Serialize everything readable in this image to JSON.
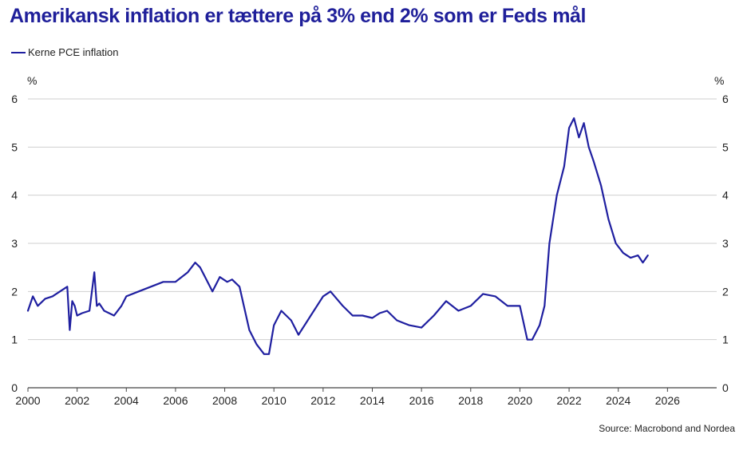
{
  "title": "Amerikansk inflation er tættere på 3% end 2% som er Feds mål",
  "legend": {
    "label": "Kerne PCE inflation"
  },
  "source": "Source: Macrobond and Nordea",
  "colors": {
    "title": "#1f1f9a",
    "series": "#1f1fa0",
    "grid": "#cfcfcf"
  },
  "chart_data": {
    "type": "line",
    "title": "Amerikansk inflation er tættere på 3% end 2% som er Feds mål",
    "ylabel_left": "%",
    "ylabel_right": "%",
    "xlim": [
      2000,
      2028
    ],
    "ylim": [
      0,
      6
    ],
    "x_ticks": [
      2000,
      2002,
      2004,
      2006,
      2008,
      2010,
      2012,
      2014,
      2016,
      2018,
      2020,
      2022,
      2024,
      2026
    ],
    "y_ticks": [
      0,
      1,
      2,
      3,
      4,
      5,
      6
    ],
    "grid": true,
    "legend_position": "top-left",
    "series": [
      {
        "name": "Kerne PCE inflation",
        "x": [
          2000.0,
          2000.2,
          2000.4,
          2000.7,
          2001.0,
          2001.3,
          2001.6,
          2001.7,
          2001.8,
          2001.9,
          2002.0,
          2002.2,
          2002.5,
          2002.7,
          2002.8,
          2002.9,
          2003.1,
          2003.5,
          2003.8,
          2004.0,
          2004.5,
          2005.0,
          2005.5,
          2006.0,
          2006.5,
          2006.8,
          2007.0,
          2007.5,
          2007.8,
          2008.1,
          2008.3,
          2008.6,
          2009.0,
          2009.3,
          2009.6,
          2009.8,
          2010.0,
          2010.3,
          2010.7,
          2011.0,
          2011.5,
          2012.0,
          2012.3,
          2012.8,
          2013.2,
          2013.6,
          2014.0,
          2014.3,
          2014.6,
          2015.0,
          2015.5,
          2016.0,
          2016.5,
          2017.0,
          2017.5,
          2018.0,
          2018.5,
          2019.0,
          2019.5,
          2020.0,
          2020.3,
          2020.5,
          2020.8,
          2021.0,
          2021.2,
          2021.5,
          2021.8,
          2022.0,
          2022.2,
          2022.4,
          2022.6,
          2022.8,
          2023.0,
          2023.3,
          2023.6,
          2023.9,
          2024.2,
          2024.5,
          2024.8,
          2025.0,
          2025.2
        ],
        "values": [
          1.6,
          1.9,
          1.7,
          1.85,
          1.9,
          2.0,
          2.1,
          1.2,
          1.8,
          1.7,
          1.5,
          1.55,
          1.6,
          2.4,
          1.7,
          1.75,
          1.6,
          1.5,
          1.7,
          1.9,
          2.0,
          2.1,
          2.2,
          2.2,
          2.4,
          2.6,
          2.5,
          2.0,
          2.3,
          2.2,
          2.25,
          2.1,
          1.2,
          0.9,
          0.7,
          0.7,
          1.3,
          1.6,
          1.4,
          1.1,
          1.5,
          1.9,
          2.0,
          1.7,
          1.5,
          1.5,
          1.45,
          1.55,
          1.6,
          1.4,
          1.3,
          1.25,
          1.5,
          1.8,
          1.6,
          1.7,
          1.95,
          1.9,
          1.7,
          1.7,
          1.0,
          1.0,
          1.3,
          1.7,
          3.0,
          4.0,
          4.6,
          5.4,
          5.6,
          5.2,
          5.5,
          5.0,
          4.7,
          4.2,
          3.5,
          3.0,
          2.8,
          2.7,
          2.75,
          2.6,
          2.75
        ]
      }
    ]
  }
}
